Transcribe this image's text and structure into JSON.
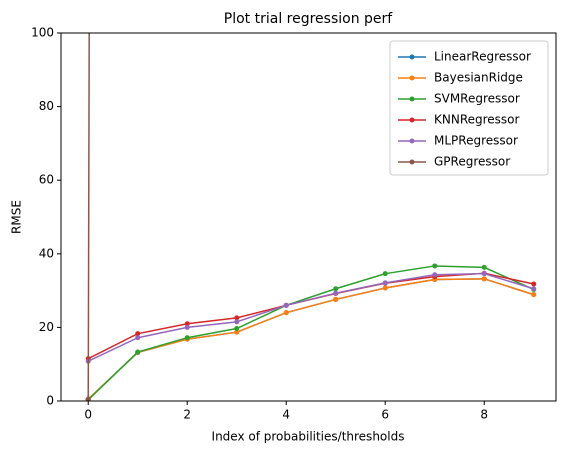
{
  "chart_data": {
    "type": "line",
    "title": "Plot trial regression perf",
    "x_label": "Index of probabilities/thresholds",
    "y_label": "RMSE",
    "x": [
      0,
      1,
      2,
      3,
      4,
      5,
      6,
      7,
      8,
      9
    ],
    "series": [
      {
        "name": "LinearRegressor",
        "color": "#1f77b4",
        "values": [
          0.5,
          13.2,
          16.8,
          18.7,
          24,
          27.6,
          30.7,
          33,
          33.2,
          28.9
        ]
      },
      {
        "name": "BayesianRidge",
        "color": "#ff7f0e",
        "values": [
          0.5,
          13.2,
          16.8,
          18.7,
          24,
          27.6,
          30.7,
          33,
          33.2,
          28.9
        ]
      },
      {
        "name": "SVMRegressor",
        "color": "#2ca02c",
        "values": [
          0.3,
          13.3,
          17.2,
          19.7,
          26,
          30.5,
          34.6,
          36.7,
          36.3,
          30.3
        ]
      },
      {
        "name": "KNNRegressor",
        "color": "#d62728",
        "values": [
          11.5,
          18.3,
          21,
          22.6,
          26,
          29.2,
          32,
          33.8,
          34.7,
          31.8
        ]
      },
      {
        "name": "MLPRegressor",
        "color": "#9467bd",
        "values": [
          10.8,
          17.2,
          20,
          21.5,
          26,
          29.3,
          32.1,
          34.3,
          34.6,
          30.5
        ]
      },
      {
        "name": "GPRegressor",
        "color": "#8c564b",
        "values": [
          0.5,
          5000,
          5000,
          5000,
          5000,
          5000,
          5000,
          5000,
          5000,
          5000
        ]
      }
    ],
    "xlim": [
      -0.55,
      9.45
    ],
    "ylim": [
      0,
      100
    ],
    "xticks": [
      0,
      2,
      4,
      6,
      8
    ],
    "yticks": [
      0,
      20,
      40,
      60,
      80,
      100
    ],
    "legend": "upper right"
  }
}
